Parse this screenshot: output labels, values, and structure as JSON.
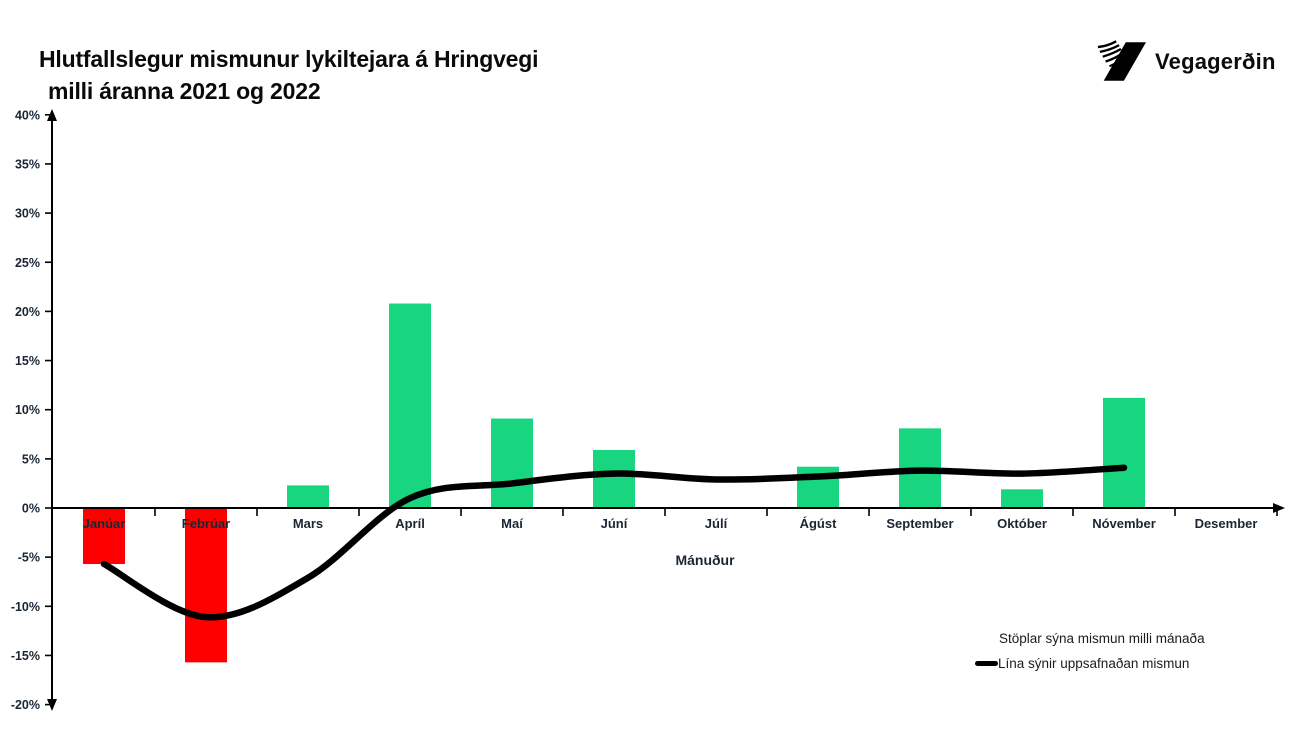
{
  "header": {
    "title_line1": "Hlutfallslegur mismunur lykiltejara á Hringvegi",
    "title_line2": "milli áranna 2021 og 2022",
    "logo_text": "Vegagerðin"
  },
  "chart_data": {
    "type": "bar",
    "title": "Hlutfallslegur mismunur lykiltejara á Hringvegi milli áranna 2021 og 2022",
    "categories": [
      "Janúar",
      "Febrúar",
      "Mars",
      "Apríl",
      "Maí",
      "Júní",
      "Júlí",
      "Ágúst",
      "September",
      "Október",
      "Nóvember",
      "Desember"
    ],
    "series": [
      {
        "name": "Stöplar sýna mismun milli mánaða",
        "type": "bar",
        "values": [
          -5.7,
          -15.7,
          2.3,
          20.8,
          9.1,
          5.9,
          0,
          4.2,
          8.1,
          1.9,
          11.2,
          0
        ]
      },
      {
        "name": "Lína sýnir uppsafnaðan mismun",
        "type": "line",
        "values": [
          -5.7,
          -11.1,
          -7.1,
          1.0,
          2.5,
          3.5,
          2.9,
          3.2,
          3.8,
          3.5,
          4.1,
          null
        ]
      }
    ],
    "xlabel": "Mánuður",
    "ylabel": "",
    "ylim": [
      -20,
      40
    ],
    "ytick_step": 5,
    "ytick_labels": [
      "40%",
      "35%",
      "30%",
      "25%",
      "20%",
      "15%",
      "10%",
      "5%",
      "0%",
      "-5%",
      "-10%",
      "-15%",
      "-20%"
    ],
    "grid": false,
    "legend_position": "bottom-right",
    "colors": {
      "bar_positive": "#18d57f",
      "bar_negative": "#ff0000",
      "line": "#000000",
      "axis": "#000000",
      "tick_text": "#1a2633"
    }
  }
}
